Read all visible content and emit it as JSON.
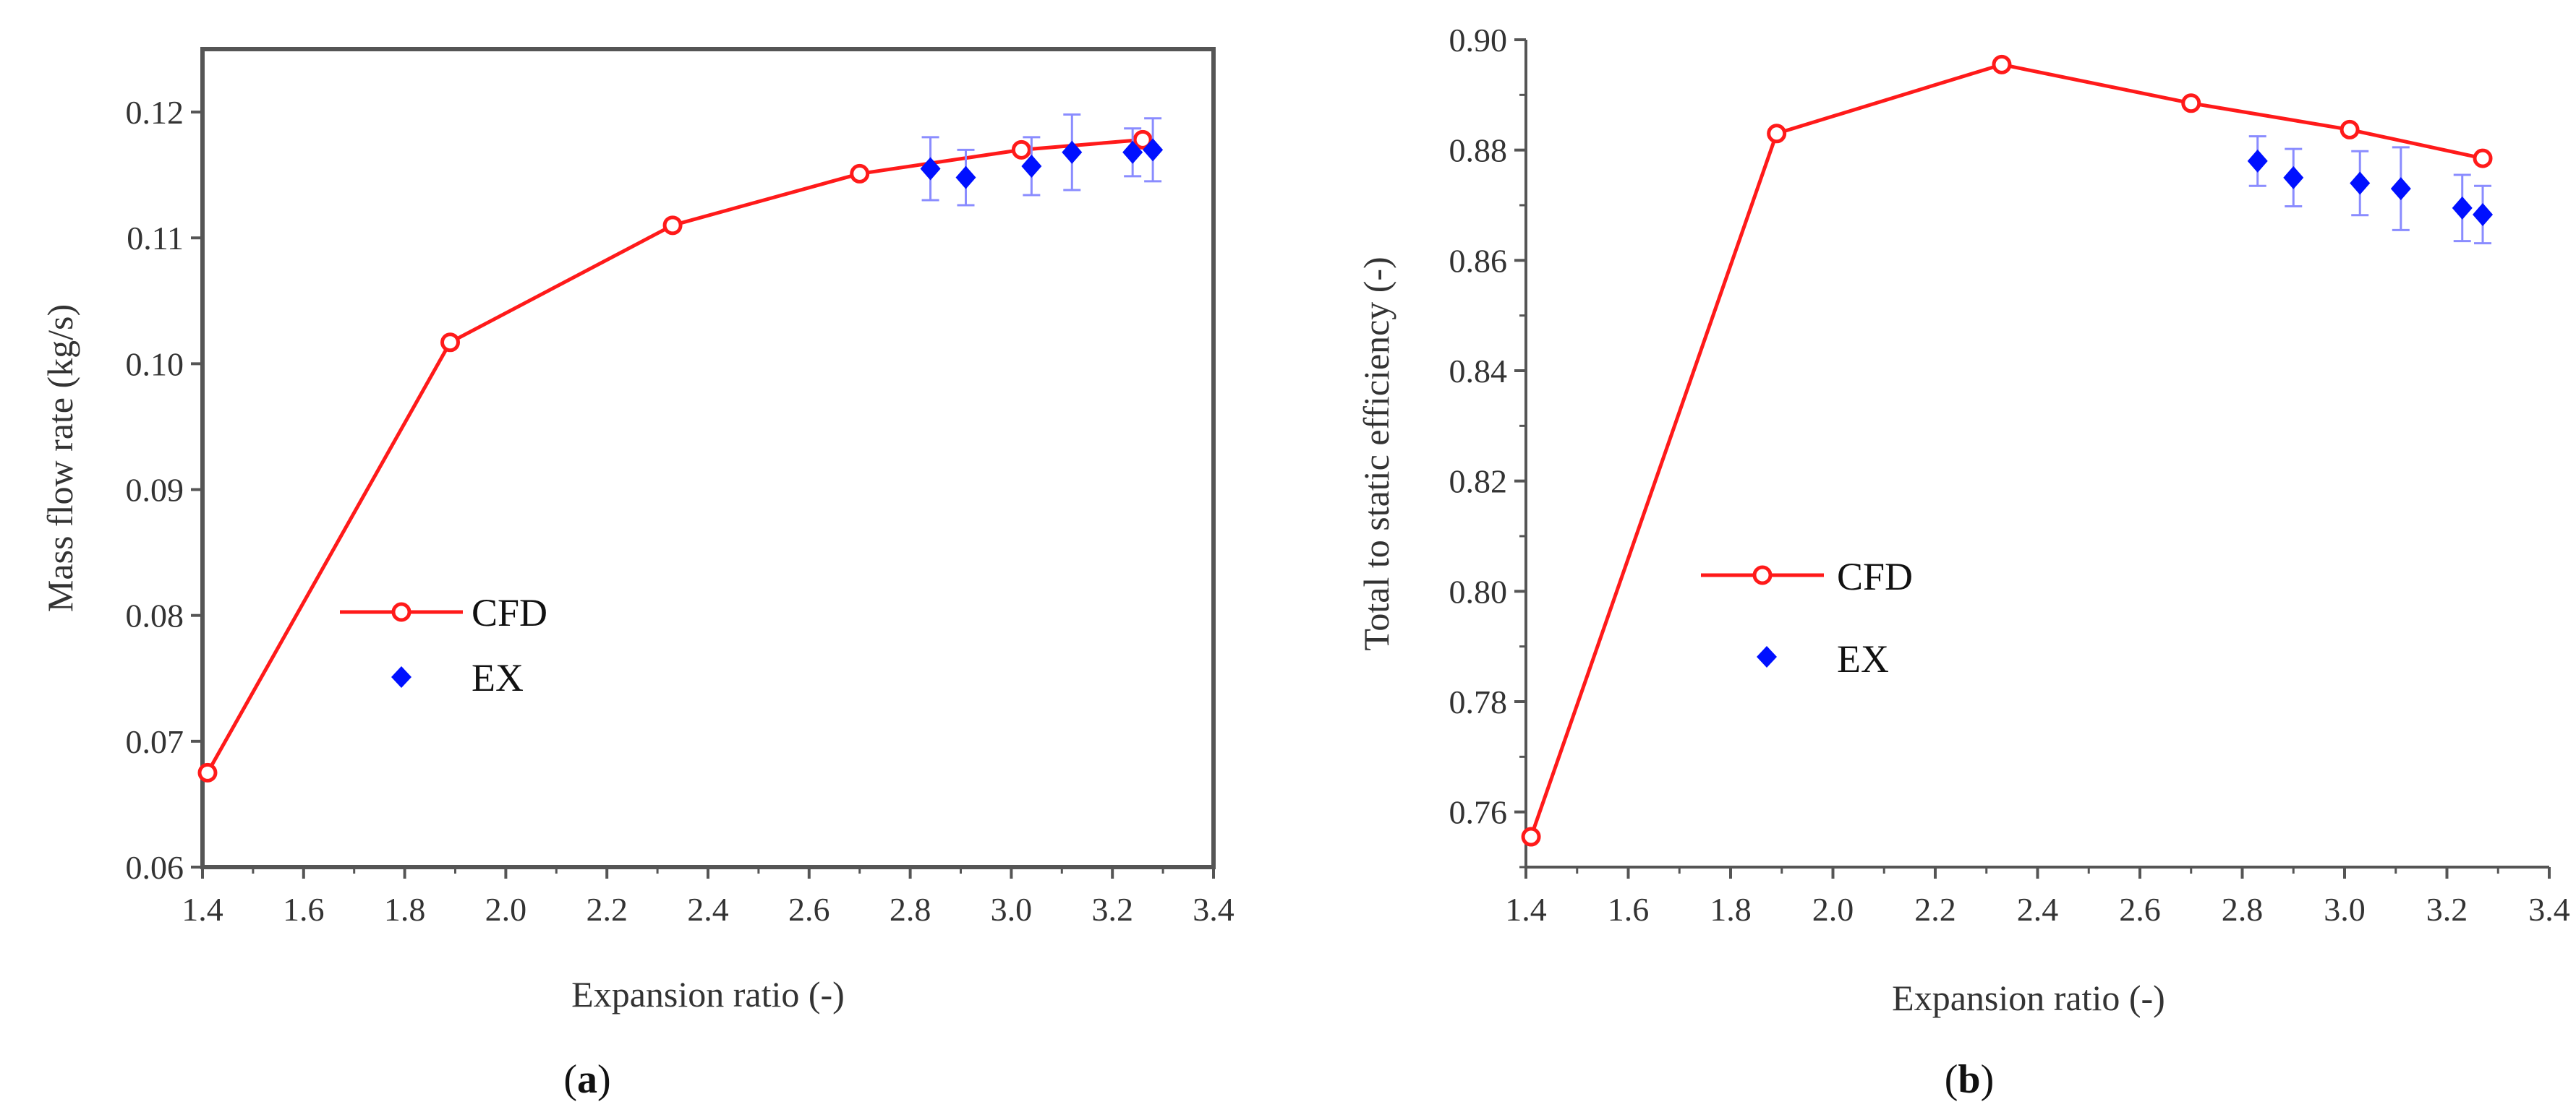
{
  "colors": {
    "cfd": "#ff1a1a",
    "ex": "#0010ff",
    "errorbar": "#8a8cff",
    "axis": "#555555"
  },
  "chart_data": [
    {
      "panel_label": "a",
      "type": "line",
      "xlabel": "Expansion ratio (-)",
      "ylabel": "Mass flow rate (kg/s)",
      "xlim": [
        1.4,
        3.4
      ],
      "ylim": [
        0.06,
        0.125
      ],
      "x_ticks": [
        {
          "v": 1.4,
          "label": "1.4"
        },
        {
          "v": 1.6,
          "label": "1.6"
        },
        {
          "v": 1.8,
          "label": "1.8"
        },
        {
          "v": 2.0,
          "label": "2.0"
        },
        {
          "v": 2.2,
          "label": "2.2"
        },
        {
          "v": 2.4,
          "label": "2.4"
        },
        {
          "v": 2.6,
          "label": "2.6"
        },
        {
          "v": 2.8,
          "label": "2.8"
        },
        {
          "v": 3.0,
          "label": "3.0"
        },
        {
          "v": 3.2,
          "label": "3.2"
        },
        {
          "v": 3.4,
          "label": "3.4"
        }
      ],
      "y_ticks": [
        {
          "v": 0.06,
          "label": "0.06"
        },
        {
          "v": 0.07,
          "label": "0.07"
        },
        {
          "v": 0.08,
          "label": "0.08"
        },
        {
          "v": 0.09,
          "label": "0.09"
        },
        {
          "v": 0.1,
          "label": "0.10"
        },
        {
          "v": 0.11,
          "label": "0.11"
        },
        {
          "v": 0.12,
          "label": "0.12"
        }
      ],
      "legend_position": "center-left",
      "series": [
        {
          "name": "CFD",
          "style": "line-open-circle",
          "x": [
            1.41,
            1.89,
            2.33,
            2.7,
            3.02,
            3.26
          ],
          "y": [
            0.0675,
            0.1017,
            0.111,
            0.1151,
            0.117,
            0.1178
          ]
        },
        {
          "name": "EX",
          "style": "diamond-errorbar",
          "x": [
            2.84,
            2.91,
            3.04,
            3.12,
            3.24,
            3.28
          ],
          "y": [
            0.1155,
            0.1148,
            0.1157,
            0.1168,
            0.1168,
            0.117
          ],
          "err": [
            0.0025,
            0.0022,
            0.0023,
            0.003,
            0.0019,
            0.0025
          ]
        }
      ]
    },
    {
      "panel_label": "b",
      "type": "line",
      "xlabel": "Expansion ratio (-)",
      "ylabel": "Total to static efficiency (-)",
      "xlim": [
        1.4,
        3.4
      ],
      "ylim": [
        0.75,
        0.9
      ],
      "x_ticks": [
        {
          "v": 1.4,
          "label": "1.4"
        },
        {
          "v": 1.6,
          "label": "1.6"
        },
        {
          "v": 1.8,
          "label": "1.8"
        },
        {
          "v": 2.0,
          "label": "2.0"
        },
        {
          "v": 2.2,
          "label": "2.2"
        },
        {
          "v": 2.4,
          "label": "2.4"
        },
        {
          "v": 2.6,
          "label": "2.6"
        },
        {
          "v": 2.8,
          "label": "2.8"
        },
        {
          "v": 3.0,
          "label": "3.0"
        },
        {
          "v": 3.2,
          "label": "3.2"
        },
        {
          "v": 3.4,
          "label": "3.4"
        }
      ],
      "y_ticks": [
        {
          "v": 0.76,
          "label": "0.76"
        },
        {
          "v": 0.78,
          "label": "0.78"
        },
        {
          "v": 0.8,
          "label": "0.80"
        },
        {
          "v": 0.82,
          "label": "0.82"
        },
        {
          "v": 0.84,
          "label": "0.84"
        },
        {
          "v": 0.86,
          "label": "0.86"
        },
        {
          "v": 0.88,
          "label": "0.88"
        },
        {
          "v": 0.9,
          "label": "0.90"
        }
      ],
      "legend_position": "center-left",
      "series": [
        {
          "name": "CFD",
          "style": "line-open-circle",
          "x": [
            1.41,
            1.89,
            2.33,
            2.7,
            3.01,
            3.27
          ],
          "y": [
            0.7555,
            0.883,
            0.8955,
            0.8885,
            0.8837,
            0.8785
          ]
        },
        {
          "name": "EX",
          "style": "diamond-errorbar",
          "x": [
            2.83,
            2.9,
            3.03,
            3.11,
            3.23,
            3.27
          ],
          "y": [
            0.878,
            0.875,
            0.874,
            0.873,
            0.8695,
            0.8683
          ],
          "err": [
            0.0045,
            0.0052,
            0.0058,
            0.0075,
            0.006,
            0.0052
          ]
        }
      ]
    }
  ]
}
